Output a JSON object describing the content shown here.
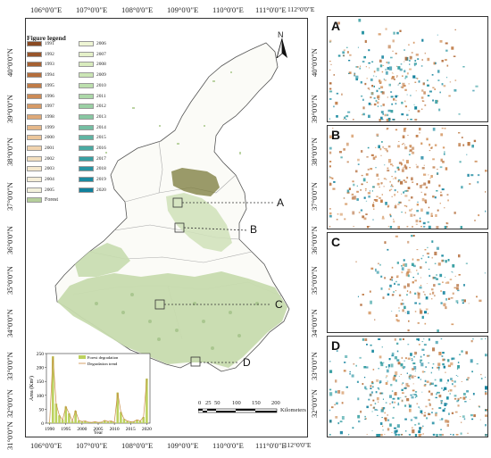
{
  "map": {
    "top_lon_labels": [
      "106°0'0\"E",
      "107°0'0\"E",
      "108°0'0\"E",
      "109°0'0\"E",
      "110°0'0\"E",
      "111°0'0\"E",
      "112°0'0\"E"
    ],
    "bottom_lon_labels": [
      "106°0'0\"E",
      "107°0'0\"E",
      "108°0'0\"E",
      "109°0'0\"E",
      "110°0'0\"E",
      "111°0'0\"E",
      "112°0'0\"E"
    ],
    "left_lat_labels": [
      "40°0'0\"N",
      "39°0'0\"N",
      "38°0'0\"N",
      "37°0'0\"N",
      "36°0'0\"N",
      "35°0'0\"N",
      "34°0'0\"N",
      "33°0'0\"N",
      "32°0'0\"N",
      "31°0'0\"N"
    ],
    "right_lat_labels": [
      "40°0'0\"N",
      "39°0'0\"N",
      "38°0'0\"N",
      "37°0'0\"N",
      "36°0'0\"N",
      "35°0'0\"N",
      "34°0'0\"N",
      "33°0'0\"N",
      "32°0'0\"N"
    ],
    "north_label": "N",
    "callouts": [
      "A",
      "B",
      "C",
      "D"
    ],
    "scale_numbers": [
      "0",
      "25",
      "50",
      "100",
      "150",
      "200"
    ],
    "scale_unit": "Kilometers"
  },
  "legend": {
    "title": "Figure legend",
    "col1": [
      {
        "label": "1991",
        "color": "#8a4a22"
      },
      {
        "label": "1992",
        "color": "#98552a"
      },
      {
        "label": "1993",
        "color": "#a66132"
      },
      {
        "label": "1994",
        "color": "#b46e3c"
      },
      {
        "label": "1995",
        "color": "#c07c48"
      },
      {
        "label": "1996",
        "color": "#cc8b56"
      },
      {
        "label": "1997",
        "color": "#d69a66"
      },
      {
        "label": "1998",
        "color": "#dea978"
      },
      {
        "label": "1999",
        "color": "#e5b88a"
      },
      {
        "label": "2000",
        "color": "#ebc69c"
      },
      {
        "label": "2001",
        "color": "#f0d3ae"
      },
      {
        "label": "2002",
        "color": "#f3dfbf"
      },
      {
        "label": "2003",
        "color": "#f5e8cd"
      },
      {
        "label": "2004",
        "color": "#f5eed8"
      },
      {
        "label": "2005",
        "color": "#f3f1dc"
      }
    ],
    "col2": [
      {
        "label": "2006",
        "color": "#eef5d4"
      },
      {
        "label": "2007",
        "color": "#e4f0c8"
      },
      {
        "label": "2008",
        "color": "#d8ebbd"
      },
      {
        "label": "2009",
        "color": "#cbe5b4"
      },
      {
        "label": "2010",
        "color": "#bcdfad"
      },
      {
        "label": "2011",
        "color": "#acd8a8"
      },
      {
        "label": "2012",
        "color": "#9bd0a4"
      },
      {
        "label": "2013",
        "color": "#88c7a2"
      },
      {
        "label": "2014",
        "color": "#74bea2"
      },
      {
        "label": "2015",
        "color": "#5fb4a2"
      },
      {
        "label": "2016",
        "color": "#4aaaa2"
      },
      {
        "label": "2017",
        "color": "#389fa2"
      },
      {
        "label": "2018",
        "color": "#2894a2"
      },
      {
        "label": "2019",
        "color": "#1b8aa0"
      },
      {
        "label": "2020",
        "color": "#10809c"
      }
    ],
    "forest_label": "Forest",
    "forest_color": "#b5cf9b"
  },
  "chart_data": {
    "type": "bar",
    "ylabel": "Area (Km²)",
    "xlabel": "Year",
    "ylim": [
      0,
      250
    ],
    "yticks": [
      "0",
      "50",
      "100",
      "150",
      "200",
      "250"
    ],
    "xticks": [
      "1990",
      "1995",
      "2000",
      "2005",
      "2010",
      "2015",
      "2020"
    ],
    "legend": [
      "Forest degradation",
      "Degradation trend"
    ],
    "series": [
      {
        "name": "Forest degradation",
        "x": [
          1990,
          1991,
          1992,
          1993,
          1994,
          1995,
          1996,
          1997,
          1998,
          1999,
          2000,
          2001,
          2002,
          2003,
          2004,
          2005,
          2006,
          2007,
          2008,
          2009,
          2010,
          2011,
          2012,
          2013,
          2014,
          2015,
          2016,
          2017,
          2018,
          2019,
          2020
        ],
        "values": [
          3,
          240,
          70,
          28,
          12,
          60,
          35,
          8,
          45,
          10,
          6,
          8,
          4,
          3,
          5,
          3,
          4,
          10,
          6,
          8,
          3,
          110,
          40,
          15,
          8,
          5,
          6,
          12,
          8,
          22,
          160
        ]
      }
    ],
    "bar_color": "#bcd15e",
    "trend_color": "#c98a44"
  }
}
